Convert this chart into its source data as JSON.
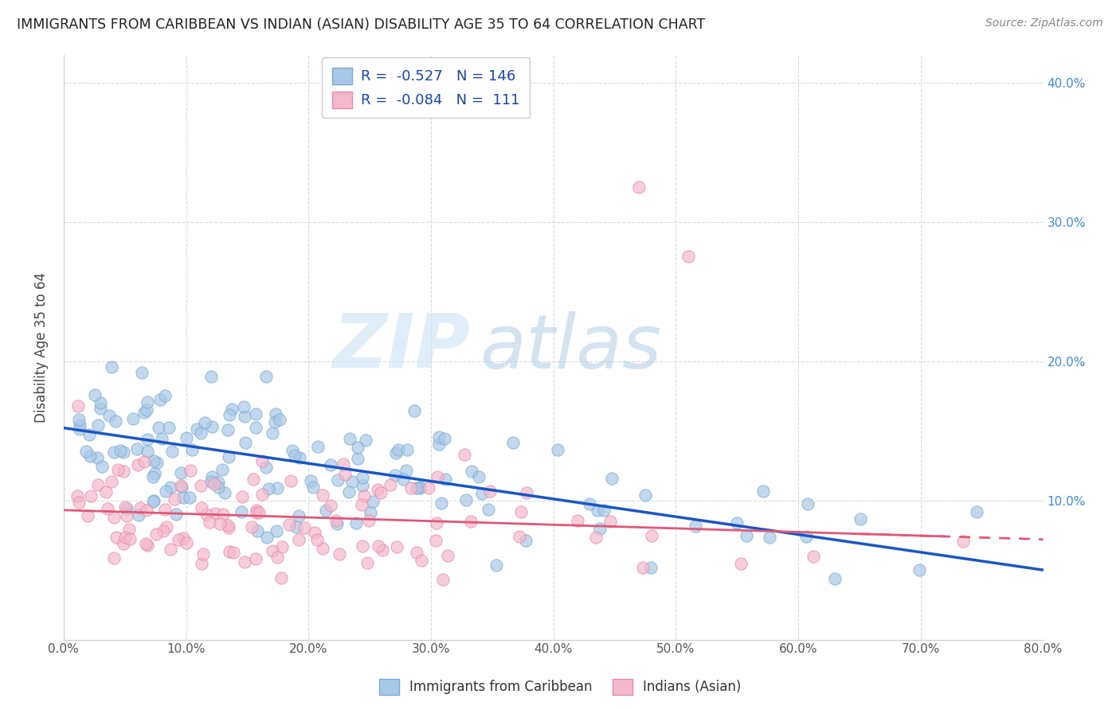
{
  "title": "IMMIGRANTS FROM CARIBBEAN VS INDIAN (ASIAN) DISABILITY AGE 35 TO 64 CORRELATION CHART",
  "source": "Source: ZipAtlas.com",
  "ylabel": "Disability Age 35 to 64",
  "xlim": [
    0.0,
    0.8
  ],
  "ylim": [
    0.0,
    0.42
  ],
  "caribbean_R": -0.527,
  "caribbean_N": 146,
  "indian_R": -0.084,
  "indian_N": 111,
  "caribbean_color": "#a8c8e8",
  "caribbean_edge_color": "#7aaad0",
  "caribbean_line_color": "#1a56c4",
  "indian_color": "#f4b8cc",
  "indian_edge_color": "#e888a8",
  "indian_line_color": "#e05878",
  "watermark_zip_color": "#ddeeff",
  "watermark_atlas_color": "#c8ddf0",
  "legend_label_1": "Immigrants from Caribbean",
  "legend_label_2": "Indians (Asian)",
  "carib_line_x0": 0.0,
  "carib_line_y0": 0.152,
  "carib_line_x1": 0.8,
  "carib_line_y1": 0.05,
  "indian_line_x0": 0.0,
  "indian_line_y0": 0.093,
  "indian_line_x1": 0.8,
  "indian_line_y1": 0.072,
  "background_color": "#ffffff",
  "grid_color": "#d0d8e0"
}
